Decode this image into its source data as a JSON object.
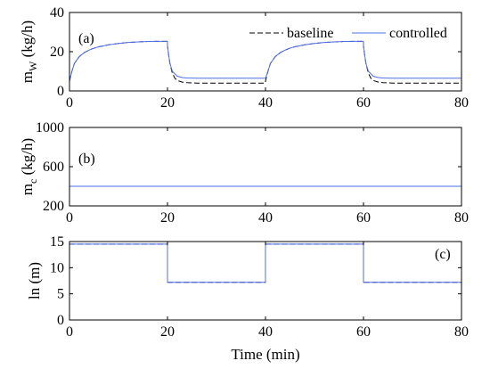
{
  "chart_data": [
    {
      "type": "line",
      "panel_label": "(a)",
      "ylabel": "m",
      "ylabel_sub": "W",
      "ylabel_unit": " (kg/h)",
      "xlim": [
        0,
        80
      ],
      "ylim": [
        0,
        40
      ],
      "x_ticks": [
        0,
        20,
        40,
        60,
        80
      ],
      "y_ticks": [
        0,
        20,
        40
      ],
      "legend": "top-right",
      "series": [
        {
          "name": "baseline",
          "color": "#000000",
          "dash": "6,3",
          "x": [
            0,
            0.5,
            1,
            2,
            3,
            4,
            5,
            6,
            8,
            10,
            12,
            14,
            16,
            18,
            19.99,
            20,
            20.2,
            20.5,
            21,
            21.5,
            22,
            23,
            24,
            26,
            30,
            35,
            39.99,
            40,
            40.5,
            41,
            42,
            43,
            44,
            45,
            46,
            48,
            50,
            52,
            54,
            56,
            58,
            59.99,
            60,
            60.2,
            60.5,
            61,
            61.5,
            62,
            63,
            64,
            66,
            70,
            75,
            80
          ],
          "y": [
            5,
            10,
            14,
            17.5,
            19.5,
            20.8,
            21.8,
            22.5,
            23.5,
            24.2,
            24.7,
            25,
            25.2,
            25.3,
            25.3,
            23,
            19,
            14,
            9,
            6.5,
            5.3,
            4.5,
            4.2,
            4,
            4,
            4,
            4,
            5,
            10,
            14,
            17.5,
            19.5,
            20.8,
            21.8,
            22.5,
            23.5,
            24.2,
            24.7,
            25,
            25.2,
            25.3,
            25.3,
            23,
            19,
            14,
            9,
            6.5,
            5.3,
            4.5,
            4.2,
            4,
            4,
            4,
            4
          ]
        },
        {
          "name": "controlled",
          "color": "#4f6fe8",
          "dash": "",
          "x": [
            0,
            0.5,
            1,
            2,
            3,
            4,
            5,
            6,
            8,
            10,
            12,
            14,
            16,
            18,
            19.99,
            20,
            20.2,
            20.5,
            21,
            22,
            23,
            24,
            26,
            30,
            35,
            39.99,
            40,
            40.5,
            41,
            42,
            43,
            44,
            45,
            46,
            48,
            50,
            52,
            54,
            56,
            58,
            59.99,
            60,
            60.2,
            60.5,
            61,
            62,
            63,
            64,
            66,
            70,
            75,
            80
          ],
          "y": [
            5,
            10,
            14,
            17.5,
            19.5,
            20.8,
            21.8,
            22.5,
            23.5,
            24.2,
            24.7,
            25,
            25.2,
            25.3,
            25.3,
            23,
            19,
            14,
            10,
            7.5,
            6.8,
            6.6,
            6.5,
            6.5,
            6.5,
            6.5,
            6.5,
            10,
            14,
            17.5,
            19.5,
            20.8,
            21.8,
            22.5,
            23.5,
            24.2,
            24.7,
            25,
            25.2,
            25.3,
            25.3,
            23,
            19,
            14,
            10,
            7.5,
            6.8,
            6.6,
            6.5,
            6.5,
            6.5,
            6.5
          ]
        }
      ]
    },
    {
      "type": "line",
      "panel_label": "(b)",
      "ylabel": "m",
      "ylabel_sub": "c",
      "ylabel_unit": " (kg/h)",
      "xlim": [
        0,
        80
      ],
      "ylim": [
        200,
        1000
      ],
      "x_ticks": [
        0,
        20,
        40,
        60,
        80
      ],
      "y_ticks": [
        200,
        600,
        1000
      ],
      "series": [
        {
          "color": "#000000",
          "dash": "6,3",
          "x": [
            0,
            80
          ],
          "y": [
            400,
            400
          ]
        },
        {
          "color": "#4f6fe8",
          "dash": "",
          "x": [
            0,
            80
          ],
          "y": [
            400,
            400
          ]
        }
      ]
    },
    {
      "type": "line",
      "panel_label": "(c)",
      "ylabel": "ln (m)",
      "xlabel": "Time (min)",
      "xlim": [
        0,
        80
      ],
      "ylim": [
        0,
        15
      ],
      "x_ticks": [
        0,
        20,
        40,
        60,
        80
      ],
      "y_ticks": [
        0,
        5,
        10,
        15
      ],
      "series": [
        {
          "color": "#000000",
          "dash": "6,3",
          "x": [
            0,
            20,
            20,
            40,
            40,
            60,
            60,
            80
          ],
          "y": [
            14.5,
            14.5,
            7.2,
            7.2,
            14.5,
            14.5,
            7.2,
            7.2
          ]
        },
        {
          "color": "#4f6fe8",
          "dash": "",
          "x": [
            0,
            20,
            20,
            40,
            40,
            60,
            60,
            80
          ],
          "y": [
            14.5,
            14.5,
            7.2,
            7.2,
            14.5,
            14.5,
            7.2,
            7.2
          ]
        }
      ]
    }
  ]
}
